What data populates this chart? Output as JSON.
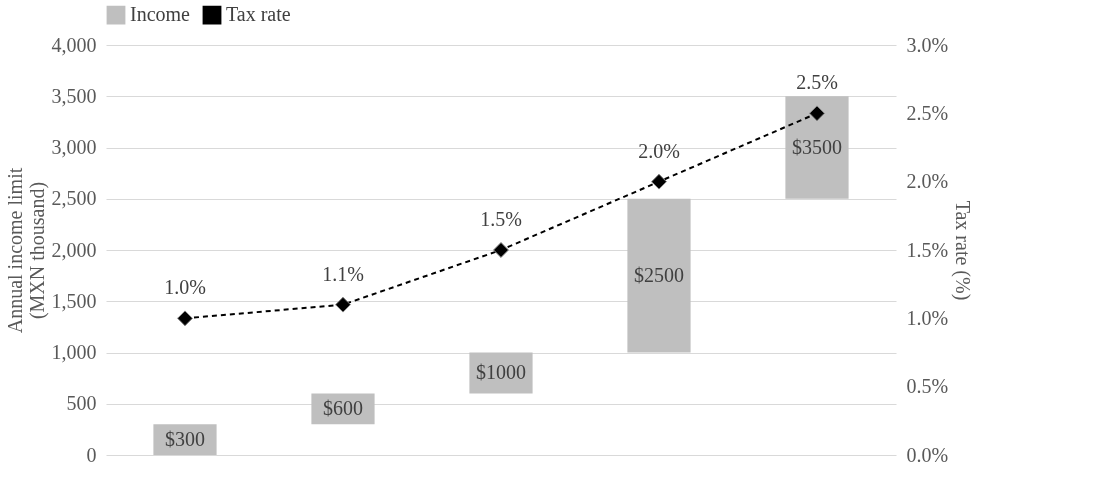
{
  "chart_data": {
    "type": "bar",
    "categories": [
      null,
      null,
      null,
      null,
      null
    ],
    "ylabel": "Annual income limit\n(MXN thousand)",
    "y2label": "Tax rate (%)",
    "ylim": [
      0,
      4000
    ],
    "yticks": [
      {
        "value": 0,
        "label": "0"
      },
      {
        "value": 500,
        "label": "500"
      },
      {
        "value": 1000,
        "label": "1,000"
      },
      {
        "value": 1500,
        "label": "1,500"
      },
      {
        "value": 2000,
        "label": "2,000"
      },
      {
        "value": 2500,
        "label": "2,500"
      },
      {
        "value": 3000,
        "label": "3,000"
      },
      {
        "value": 3500,
        "label": "3,500"
      },
      {
        "value": 4000,
        "label": "4,000"
      }
    ],
    "y2lim": [
      0,
      3
    ],
    "y2ticks": [
      {
        "value": 0,
        "label": "0.0%"
      },
      {
        "value": 0.5,
        "label": "0.5%"
      },
      {
        "value": 1,
        "label": "1.0%"
      },
      {
        "value": 1.5,
        "label": "1.5%"
      },
      {
        "value": 2,
        "label": "2.0%"
      },
      {
        "value": 2.5,
        "label": "2.5%"
      },
      {
        "value": 3,
        "label": "3.0%"
      }
    ],
    "grid": "y",
    "legend": "top",
    "series": [
      {
        "name": "Income",
        "color": "#bfbfbf",
        "base": [
          0,
          300,
          600,
          1000,
          2500
        ],
        "values": [
          300,
          300,
          400,
          1500,
          1000
        ],
        "value_labels": [
          "$300",
          "$600",
          "$1000",
          "$2500",
          "$3500"
        ]
      },
      {
        "name": "Tax rate",
        "type": "line",
        "axis": "y2",
        "color": "#000000",
        "marker": "diamond",
        "line_style": "dashed",
        "values": [
          1.0,
          1.1,
          1.5,
          2.0,
          2.5
        ],
        "value_labels": [
          "1.0%",
          "1.1%",
          "1.5%",
          "2.0%",
          "2.5%"
        ]
      }
    ]
  }
}
